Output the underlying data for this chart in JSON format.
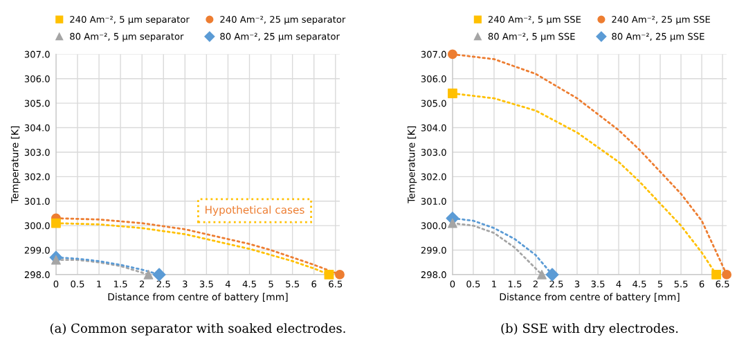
{
  "chart_data": [
    {
      "type": "line",
      "title": "(a) Common separator with soaked electrodes.",
      "xlabel": "Distance from centre of battery [mm]",
      "ylabel": "Temperature [K]",
      "xlim": [
        0,
        6.6
      ],
      "xticks": [
        0,
        0.5,
        1,
        1.5,
        2,
        2.5,
        3,
        3.5,
        4,
        4.5,
        5,
        5.5,
        6,
        6.5
      ],
      "ylim": [
        298,
        307
      ],
      "yticks": [
        {
          "value": 298,
          "label": "298.0"
        },
        {
          "value": 299,
          "label": "299.0"
        },
        {
          "value": 300,
          "label": "300.0"
        },
        {
          "value": 301,
          "label": "301.0"
        },
        {
          "value": 302,
          "label": "302.0"
        },
        {
          "value": 303,
          "label": "303.0"
        },
        {
          "value": 304,
          "label": "304.0"
        },
        {
          "value": 305,
          "label": "305.0"
        },
        {
          "value": 306,
          "label": "306.0"
        },
        {
          "value": 307,
          "label": "307.0"
        }
      ],
      "grid": true,
      "legend": "top",
      "line_style": "dotted",
      "annotations": [
        "Hypothetical cases"
      ],
      "series": [
        {
          "type": "line",
          "color": "#ffc000",
          "x": [
            0,
            1,
            2,
            3,
            4,
            4.5,
            5,
            5.5,
            6,
            6.35
          ],
          "values": [
            300.1,
            300.05,
            299.9,
            299.65,
            299.25,
            299.05,
            298.8,
            298.55,
            298.25,
            298.0
          ]
        },
        {
          "type": "line",
          "color": "#ed7d31",
          "x": [
            0,
            1,
            2,
            3,
            4,
            4.5,
            5,
            5.5,
            6,
            6.6
          ],
          "values": [
            300.3,
            300.25,
            300.1,
            299.85,
            299.45,
            299.25,
            299.0,
            298.7,
            298.4,
            298.0
          ]
        },
        {
          "type": "line",
          "color": "#a5a5a5",
          "x": [
            0,
            0.5,
            1,
            1.5,
            2.15
          ],
          "values": [
            298.6,
            298.6,
            298.5,
            298.35,
            298.0
          ]
        },
        {
          "type": "line",
          "color": "#5b9bd5",
          "x": [
            0,
            0.5,
            1,
            1.5,
            2,
            2.4
          ],
          "values": [
            298.7,
            298.65,
            298.55,
            298.4,
            298.2,
            298.0
          ]
        },
        {
          "type": "scatter",
          "name": "240 Am⁻², 5 µm separator",
          "color": "#ffc000",
          "marker": "square",
          "x": [
            0,
            6.35
          ],
          "values": [
            300.1,
            298.0
          ]
        },
        {
          "type": "scatter",
          "name": "240 Am⁻², 25 µm separator",
          "color": "#ed7d31",
          "marker": "circle",
          "x": [
            0,
            6.6
          ],
          "values": [
            300.3,
            298.0
          ]
        },
        {
          "type": "scatter",
          "name": "80 Am⁻², 5 µm separator",
          "color": "#a5a5a5",
          "marker": "triangle",
          "x": [
            0,
            2.15
          ],
          "values": [
            298.6,
            298.0
          ]
        },
        {
          "type": "scatter",
          "name": "80 Am⁻², 25 µm separator",
          "color": "#5b9bd5",
          "marker": "diamond",
          "x": [
            0,
            2.4
          ],
          "values": [
            298.7,
            298.0
          ]
        }
      ]
    },
    {
      "type": "line",
      "title": "(b) SSE with dry electrodes.",
      "xlabel": "Distance from centre of battery [mm]",
      "ylabel": "Temperature [K]",
      "xlim": [
        0,
        6.6
      ],
      "xticks": [
        0,
        0.5,
        1,
        1.5,
        2,
        2.5,
        3,
        3.5,
        4,
        4.5,
        5,
        5.5,
        6,
        6.5
      ],
      "ylim": [
        298,
        307
      ],
      "yticks": [
        {
          "value": 298,
          "label": "298.0"
        },
        {
          "value": 299,
          "label": "299.0"
        },
        {
          "value": 300,
          "label": "300.0"
        },
        {
          "value": 301,
          "label": "301.0"
        },
        {
          "value": 302,
          "label": "302.0"
        },
        {
          "value": 303,
          "label": "303.0"
        },
        {
          "value": 304,
          "label": "304.0"
        },
        {
          "value": 305,
          "label": "305.0"
        },
        {
          "value": 306,
          "label": "306.0"
        },
        {
          "value": 307,
          "label": "307.0"
        }
      ],
      "grid": true,
      "legend": "top",
      "line_style": "dotted",
      "series": [
        {
          "type": "line",
          "color": "#ffc000",
          "x": [
            0,
            1,
            2,
            3,
            4,
            4.5,
            5,
            5.5,
            6,
            6.35
          ],
          "values": [
            305.4,
            305.2,
            304.7,
            303.8,
            302.6,
            301.8,
            300.9,
            300.0,
            298.9,
            298.0
          ]
        },
        {
          "type": "line",
          "color": "#ed7d31",
          "x": [
            0,
            1,
            2,
            3,
            4,
            4.5,
            5,
            5.5,
            6,
            6.6
          ],
          "values": [
            307.0,
            306.8,
            306.2,
            305.2,
            303.9,
            303.1,
            302.2,
            301.3,
            300.2,
            298.0
          ]
        },
        {
          "type": "line",
          "color": "#a5a5a5",
          "x": [
            0,
            0.5,
            1,
            1.5,
            2.15
          ],
          "values": [
            300.1,
            300.0,
            299.7,
            299.1,
            298.0
          ]
        },
        {
          "type": "line",
          "color": "#5b9bd5",
          "x": [
            0,
            0.5,
            1,
            1.5,
            2,
            2.4
          ],
          "values": [
            300.3,
            300.2,
            299.9,
            299.45,
            298.8,
            298.0
          ]
        },
        {
          "type": "scatter",
          "name": "240 Am⁻², 5 µm SSE",
          "color": "#ffc000",
          "marker": "square",
          "x": [
            0,
            6.35
          ],
          "values": [
            305.4,
            298.0
          ]
        },
        {
          "type": "scatter",
          "name": "240 Am⁻², 25 µm SSE",
          "color": "#ed7d31",
          "marker": "circle",
          "x": [
            0,
            6.6
          ],
          "values": [
            307.0,
            298.0
          ]
        },
        {
          "type": "scatter",
          "name": "80 Am⁻², 5 µm SSE",
          "color": "#a5a5a5",
          "marker": "triangle",
          "x": [
            0,
            2.15
          ],
          "values": [
            300.1,
            298.0
          ]
        },
        {
          "type": "scatter",
          "name": "80 Am⁻², 25 µm SSE",
          "color": "#5b9bd5",
          "marker": "diamond",
          "x": [
            0,
            2.4
          ],
          "values": [
            300.3,
            298.0
          ]
        }
      ]
    }
  ]
}
